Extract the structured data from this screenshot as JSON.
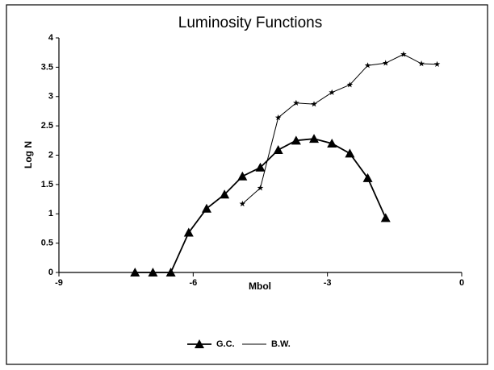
{
  "chart_data": {
    "type": "line",
    "title": "Luminosity Functions",
    "x_label": "Mbol",
    "y_label": "Log N",
    "xlim": [
      -9,
      0
    ],
    "xticks": [
      -9,
      -6,
      -3,
      0
    ],
    "ylim": [
      0,
      4
    ],
    "yticks": [
      0,
      0.5,
      1,
      1.5,
      2,
      2.5,
      3,
      3.5,
      4
    ],
    "legend": "bottom",
    "series": [
      {
        "name": "G.C.",
        "color": "#000000",
        "marker": "triangle",
        "x": [
          -7.3,
          -6.9,
          -6.5,
          -6.1,
          -5.7,
          -5.3,
          -4.9,
          -4.5,
          -4.1,
          -3.7,
          -3.3,
          -2.9,
          -2.5,
          -2.1,
          -1.7
        ],
        "values": [
          0,
          0,
          0,
          0.68,
          1.09,
          1.33,
          1.64,
          1.79,
          2.09,
          2.25,
          2.28,
          2.2,
          2.03,
          1.61,
          0.93
        ]
      },
      {
        "name": "B.W.",
        "color": "#000000",
        "marker": "star",
        "x": [
          -4.9,
          -4.5,
          -4.1,
          -3.7,
          -3.3,
          -2.9,
          -2.5,
          -2.1,
          -1.7,
          -1.3,
          -0.9,
          -0.55
        ],
        "values": [
          1.17,
          1.44,
          2.64,
          2.89,
          2.87,
          3.07,
          3.2,
          3.53,
          3.57,
          3.72,
          3.56,
          3.55
        ]
      }
    ]
  }
}
